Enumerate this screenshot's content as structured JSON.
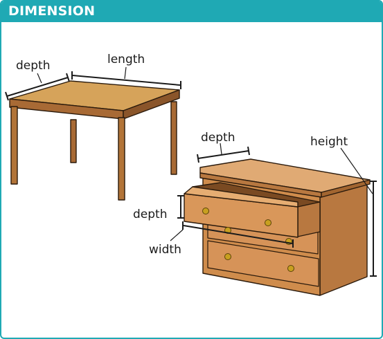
{
  "header": {
    "title": "DIMENSION"
  },
  "colors": {
    "accent": "#1fa9b4",
    "wood_light": "#d6a35a",
    "wood_mid": "#c98a4a",
    "wood_dark": "#a86a35",
    "knob": "#c8a020"
  },
  "table": {
    "labels": {
      "depth": "depth",
      "length": "length"
    }
  },
  "dresser": {
    "labels": {
      "depth_top": "depth",
      "height": "height",
      "drawer_depth": "depth",
      "width": "width"
    }
  }
}
